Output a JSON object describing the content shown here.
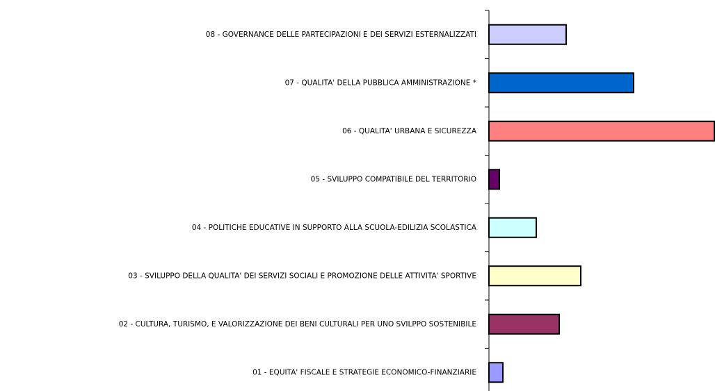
{
  "chart_data": {
    "type": "bar",
    "orientation": "horizontal",
    "categories": [
      "01 - EQUITA' FISCALE E STRATEGIE ECONOMICO-FINANZIARIE",
      "02 - CULTURA, TURISMO, E VALORIZZAZIONE DEI BENI CULTURALI PER UNO SVILPPO SOSTENIBILE",
      "03 - SVILUPPO DELLA QUALITA' DEI SERVIZI SOCIALI E PROMOZIONE DELLE ATTIVITA' SPORTIVE",
      "04 - POLITICHE EDUCATIVE IN SUPPORTO ALLA SCUOLA-EDILIZIA SCOLASTICA",
      "05 - SVILUPPO COMPATIBILE DEL TERRITORIO",
      "06 - QUALITA' URBANA E SICUREZZA",
      "07 - QUALITA' DELLA PUBBLICA AMMINISTRAZIONE *",
      "08 - GOVERNANCE DELLE PARTECIPAZIONI E DEI SERVIZI ESTERNALIZZATI"
    ],
    "values": [
      20,
      101,
      132,
      68,
      15,
      324,
      208,
      111
    ],
    "colors": [
      "#9999ff",
      "#993366",
      "#ffffcc",
      "#ccffff",
      "#660066",
      "#ff8080",
      "#0066cc",
      "#ccccff"
    ],
    "xlim": [
      0,
      325
    ]
  }
}
